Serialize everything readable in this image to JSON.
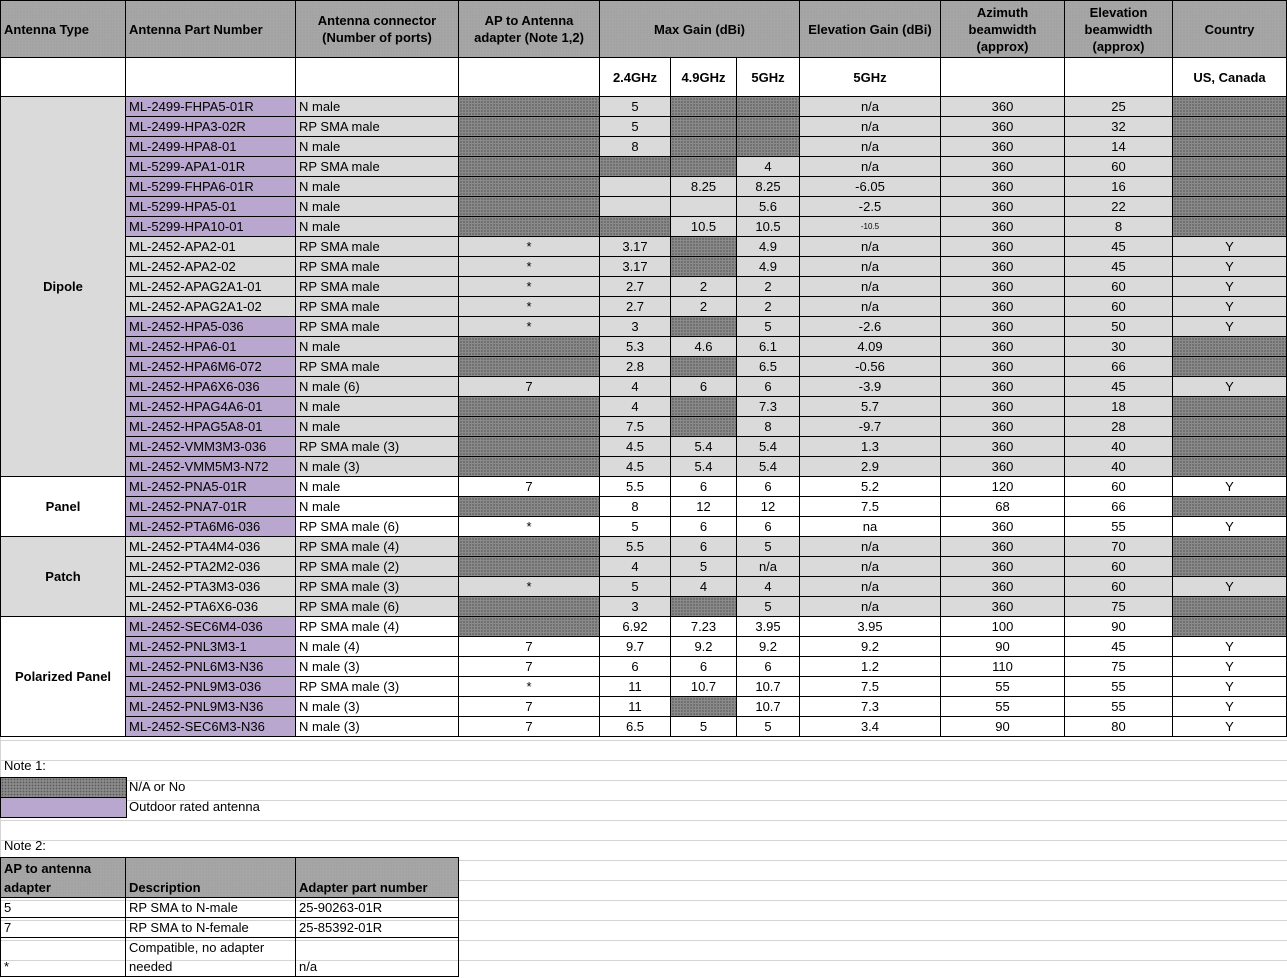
{
  "header": {
    "antenna_type": "Antenna Type",
    "part_number": "Antenna Part Number",
    "connector": "Antenna connector (Number of ports)",
    "adapter": "AP to Antenna adapter (Note 1,2)",
    "max_gain": "Max Gain (dBi)",
    "elev_gain": "Elevation Gain (dBi)",
    "azimuth": "Azimuth beamwidth (approx)",
    "elev_bw": "Elevation beamwidth (approx)",
    "country": "Country"
  },
  "subheader": {
    "g24": "2.4GHz",
    "g49": "4.9GHz",
    "g5": "5GHz",
    "elev5": "5GHz",
    "country": "US, Canada"
  },
  "groups": [
    {
      "type": "Dipole",
      "shade": "grey"
    },
    {
      "type": "Panel",
      "shade": "white"
    },
    {
      "type": "Patch",
      "shade": "grey"
    },
    {
      "type": "Polarized Panel",
      "shade": "white"
    }
  ],
  "rows": [
    {
      "group": 0,
      "pn": "ML-2499-FHPA5-01R",
      "outdoor": true,
      "conn": "N male",
      "adapter": null,
      "g24": "5",
      "g49": null,
      "g5": null,
      "elev": "n/a",
      "az": "360",
      "ebw": "25",
      "country": null
    },
    {
      "group": 0,
      "pn": "ML-2499-HPA3-02R",
      "outdoor": true,
      "conn": "RP SMA male",
      "adapter": null,
      "g24": "5",
      "g49": null,
      "g5": null,
      "elev": "n/a",
      "az": "360",
      "ebw": "32",
      "country": null
    },
    {
      "group": 0,
      "pn": "ML-2499-HPA8-01",
      "outdoor": true,
      "conn": "N male",
      "adapter": null,
      "g24": "8",
      "g49": null,
      "g5": null,
      "elev": "n/a",
      "az": "360",
      "ebw": "14",
      "country": null
    },
    {
      "group": 0,
      "pn": "ML-5299-APA1-01R",
      "outdoor": true,
      "conn": "RP SMA male",
      "adapter": null,
      "g24": null,
      "g49": null,
      "g5": "4",
      "elev": "n/a",
      "az": "360",
      "ebw": "60",
      "country": null
    },
    {
      "group": 0,
      "pn": "ML-5299-FHPA6-01R",
      "outdoor": true,
      "conn": "N male",
      "adapter": null,
      "g24": "",
      "g49": "8.25",
      "g5": "8.25",
      "elev": "-6.05",
      "az": "360",
      "ebw": "16",
      "country": null
    },
    {
      "group": 0,
      "pn": "ML-5299-HPA5-01",
      "outdoor": true,
      "conn": "N male",
      "adapter": null,
      "g24": "",
      "g49": "",
      "g5": "5.6",
      "elev": "-2.5",
      "az": "360",
      "ebw": "22",
      "country": null
    },
    {
      "group": 0,
      "pn": "ML-5299-HPA10-01",
      "outdoor": true,
      "conn": "N male",
      "adapter": null,
      "g24": null,
      "g49": "10.5",
      "g5": "10.5",
      "elev": "-10.5",
      "elev_small": true,
      "az": "360",
      "ebw": "8",
      "country": null
    },
    {
      "group": 0,
      "pn": "ML-2452-APA2-01",
      "outdoor": false,
      "conn": "RP SMA male",
      "adapter": "*",
      "g24": "3.17",
      "g49": null,
      "g5": "4.9",
      "elev": "n/a",
      "az": "360",
      "ebw": "45",
      "country": "Y"
    },
    {
      "group": 0,
      "pn": "ML-2452-APA2-02",
      "outdoor": false,
      "conn": "RP SMA male",
      "adapter": "*",
      "g24": "3.17",
      "g49": null,
      "g5": "4.9",
      "elev": "n/a",
      "az": "360",
      "ebw": "45",
      "country": "Y"
    },
    {
      "group": 0,
      "pn": "ML-2452-APAG2A1-01",
      "outdoor": false,
      "conn": "RP SMA male",
      "adapter": "*",
      "g24": "2.7",
      "g49": "2",
      "g5": "2",
      "elev": "n/a",
      "az": "360",
      "ebw": "60",
      "country": "Y"
    },
    {
      "group": 0,
      "pn": "ML-2452-APAG2A1-02",
      "outdoor": false,
      "conn": "RP SMA male",
      "adapter": "*",
      "g24": "2.7",
      "g49": "2",
      "g5": "2",
      "elev": "n/a",
      "az": "360",
      "ebw": "60",
      "country": "Y"
    },
    {
      "group": 0,
      "pn": "ML-2452-HPA5-036",
      "outdoor": true,
      "conn": "RP SMA male",
      "adapter": "*",
      "g24": "3",
      "g49": null,
      "g5": "5",
      "elev": "-2.6",
      "az": "360",
      "ebw": "50",
      "country": "Y"
    },
    {
      "group": 0,
      "pn": "ML-2452-HPA6-01",
      "outdoor": true,
      "conn": "N male",
      "adapter": null,
      "g24": "5.3",
      "g49": "4.6",
      "g5": "6.1",
      "elev": "4.09",
      "az": "360",
      "ebw": "30",
      "country": null
    },
    {
      "group": 0,
      "pn": "ML-2452-HPA6M6-072",
      "outdoor": true,
      "conn": "RP SMA male",
      "adapter": null,
      "g24": "2.8",
      "g49": null,
      "g5": "6.5",
      "elev": "-0.56",
      "az": "360",
      "ebw": "66",
      "country": null
    },
    {
      "group": 0,
      "pn": "ML-2452-HPA6X6-036",
      "outdoor": true,
      "conn": "N male (6)",
      "adapter": "7",
      "g24": "4",
      "g49": "6",
      "g5": "6",
      "elev": "-3.9",
      "az": "360",
      "ebw": "45",
      "country": "Y"
    },
    {
      "group": 0,
      "pn": "ML-2452-HPAG4A6-01",
      "outdoor": true,
      "conn": "N male",
      "adapter": null,
      "g24": "4",
      "g49": null,
      "g5": "7.3",
      "elev": "5.7",
      "az": "360",
      "ebw": "18",
      "country": null
    },
    {
      "group": 0,
      "pn": "ML-2452-HPAG5A8-01",
      "outdoor": true,
      "conn": "N male",
      "adapter": null,
      "g24": "7.5",
      "g49": null,
      "g5": "8",
      "elev": "-9.7",
      "az": "360",
      "ebw": "28",
      "country": null
    },
    {
      "group": 0,
      "pn": "ML-2452-VMM3M3-036",
      "outdoor": true,
      "conn": "RP SMA male (3)",
      "adapter": null,
      "g24": "4.5",
      "g49": "5.4",
      "g5": "5.4",
      "elev": "1.3",
      "az": "360",
      "ebw": "40",
      "country": null
    },
    {
      "group": 0,
      "pn": "ML-2452-VMM5M3-N72",
      "outdoor": true,
      "conn": "N male (3)",
      "adapter": null,
      "g24": "4.5",
      "g49": "5.4",
      "g5": "5.4",
      "elev": "2.9",
      "az": "360",
      "ebw": "40",
      "country": null
    },
    {
      "group": 1,
      "pn": "ML-2452-PNA5-01R",
      "outdoor": true,
      "conn": "N male",
      "adapter": "7",
      "g24": "5.5",
      "g49": "6",
      "g5": "6",
      "elev": "5.2",
      "az": "120",
      "ebw": "60",
      "country": "Y"
    },
    {
      "group": 1,
      "pn": "ML-2452-PNA7-01R",
      "outdoor": true,
      "conn": "N male",
      "adapter": null,
      "g24": "8",
      "g49": "12",
      "g5": "12",
      "elev": "7.5",
      "az": "68",
      "ebw": "66",
      "country": null
    },
    {
      "group": 1,
      "pn": "ML-2452-PTA6M6-036",
      "outdoor": true,
      "conn": "RP SMA male (6)",
      "adapter": "*",
      "g24": "5",
      "g49": "6",
      "g5": "6",
      "elev": "na",
      "az": "360",
      "ebw": "55",
      "country": "Y"
    },
    {
      "group": 2,
      "pn": "ML-2452-PTA4M4-036",
      "outdoor": false,
      "conn": "RP SMA male (4)",
      "adapter": null,
      "g24": "5.5",
      "g49": "6",
      "g5": "5",
      "elev": "n/a",
      "az": "360",
      "ebw": "70",
      "country": null
    },
    {
      "group": 2,
      "pn": "ML-2452-PTA2M2-036",
      "outdoor": false,
      "conn": "RP SMA male (2)",
      "adapter": null,
      "g24": "4",
      "g49": "5",
      "g5": "n/a",
      "elev": "n/a",
      "az": "360",
      "ebw": "60",
      "country": null
    },
    {
      "group": 2,
      "pn": "ML-2452-PTA3M3-036",
      "outdoor": false,
      "conn": "RP SMA male (3)",
      "adapter": "*",
      "g24": "5",
      "g49": "4",
      "g5": "4",
      "elev": "n/a",
      "az": "360",
      "ebw": "60",
      "country": "Y"
    },
    {
      "group": 2,
      "pn": "ML-2452-PTA6X6-036",
      "outdoor": false,
      "conn": "RP SMA male (6)",
      "adapter": null,
      "g24": "3",
      "g49": null,
      "g5": "5",
      "elev": "n/a",
      "az": "360",
      "ebw": "75",
      "country": null
    },
    {
      "group": 3,
      "pn": "ML-2452-SEC6M4-036",
      "outdoor": true,
      "conn": "RP SMA male (4)",
      "adapter": null,
      "g24": "6.92",
      "g49": "7.23",
      "g5": "3.95",
      "elev": "3.95",
      "az": "100",
      "ebw": "90",
      "country": null
    },
    {
      "group": 3,
      "pn": "ML-2452-PNL3M3-1",
      "outdoor": true,
      "conn": "N male (4)",
      "adapter": "7",
      "g24": "9.7",
      "g49": "9.2",
      "g5": "9.2",
      "elev": "9.2",
      "az": "90",
      "ebw": "45",
      "country": "Y"
    },
    {
      "group": 3,
      "pn": "ML-2452-PNL6M3-N36",
      "outdoor": true,
      "conn": "N male (3)",
      "adapter": "7",
      "g24": "6",
      "g49": "6",
      "g5": "6",
      "elev": "1.2",
      "az": "110",
      "ebw": "75",
      "country": "Y"
    },
    {
      "group": 3,
      "pn": "ML-2452-PNL9M3-036",
      "outdoor": true,
      "conn": "RP SMA male (3)",
      "adapter": "*",
      "g24": "11",
      "g49": "10.7",
      "g5": "10.7",
      "elev": "7.5",
      "az": "55",
      "ebw": "55",
      "country": "Y"
    },
    {
      "group": 3,
      "pn": "ML-2452-PNL9M3-N36",
      "outdoor": true,
      "conn": "N male (3)",
      "adapter": "7",
      "g24": "11",
      "g49": null,
      "g5": "10.7",
      "elev": "7.3",
      "az": "55",
      "ebw": "55",
      "country": "Y"
    },
    {
      "group": 3,
      "pn": "ML-2452-SEC6M3-N36",
      "outdoor": true,
      "conn": "N male (3)",
      "adapter": "7",
      "g24": "6.5",
      "g49": "5",
      "g5": "5",
      "elev": "3.4",
      "az": "90",
      "ebw": "80",
      "country": "Y"
    }
  ],
  "notes": {
    "note1_label": "Note 1:",
    "legend": [
      {
        "swatch": "na",
        "text": "N/A or No"
      },
      {
        "swatch": "outdoor",
        "text": "Outdoor rated antenna"
      }
    ],
    "note2_label": "Note 2:",
    "adapter_table": {
      "headers": [
        "AP to antenna adapter",
        "Description",
        "Adapter part number"
      ],
      "rows": [
        [
          "5",
          "RP SMA to N-male",
          "25-90263-01R"
        ],
        [
          "7",
          "RP SMA to N-female",
          "25-85392-01R"
        ],
        [
          "*",
          "Compatible, no adapter needed",
          "n/a"
        ]
      ]
    }
  },
  "colors": {
    "header_bg": "#a6a6a6",
    "group_grey": "#dadada",
    "outdoor_purple": "#b9a7cf",
    "na_pattern": "#8a8a8a"
  }
}
